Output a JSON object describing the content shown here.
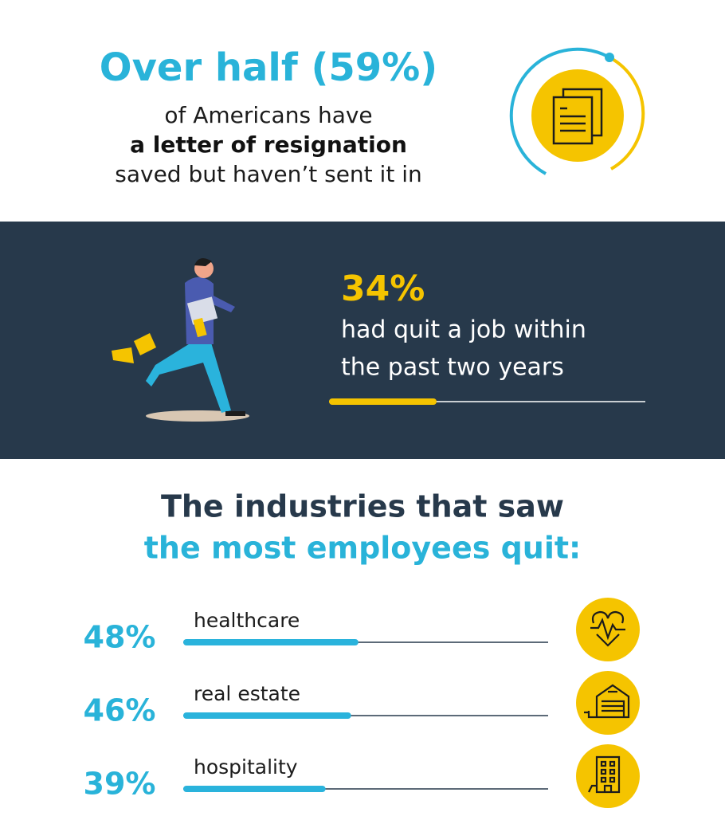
{
  "headline": {
    "highlight": "Over half (59%)",
    "lines": [
      "of Americans have",
      "a letter of resignation",
      "saved but haven’t sent it in"
    ]
  },
  "quit_stat": {
    "value": 34,
    "label": "34%",
    "lines": [
      "had quit a job within",
      "the past two years"
    ]
  },
  "industries": {
    "title": [
      "The industries that saw",
      "the most employees quit:"
    ],
    "items": [
      {
        "value": 48,
        "label": "48%",
        "name": "healthcare"
      },
      {
        "value": 46,
        "label": "46%",
        "name": "real estate"
      },
      {
        "value": 39,
        "label": "39%",
        "name": "hospitality"
      }
    ]
  }
}
